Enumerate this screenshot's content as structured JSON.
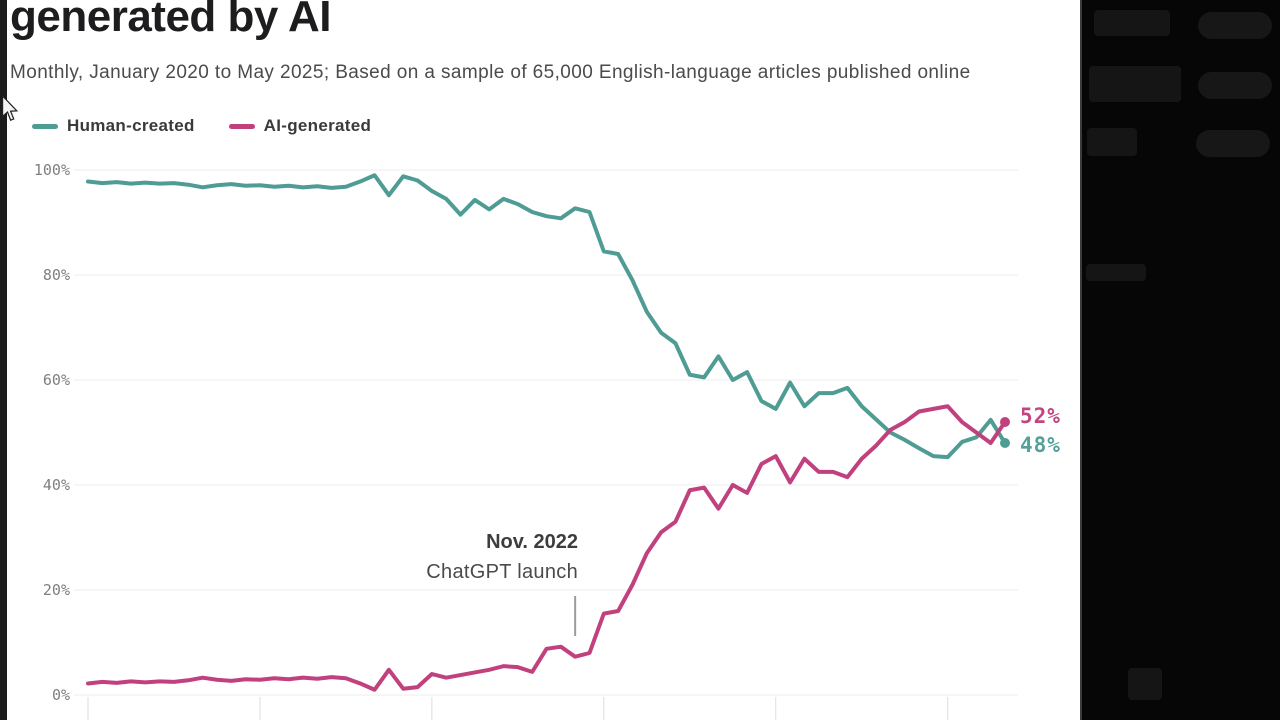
{
  "header": {
    "title": "generated by AI",
    "subtitle": "Monthly, January 2020 to May 2025; Based on a sample of 65,000 English-language articles published online"
  },
  "legend": [
    {
      "label": "Human-created",
      "color": "#4f9c94"
    },
    {
      "label": "AI-generated",
      "color": "#c0417e"
    }
  ],
  "annotation": {
    "line1": "Nov. 2022",
    "line2": "ChatGPT launch"
  },
  "end_labels": {
    "ai": "52%",
    "human": "48%"
  },
  "colors": {
    "human": "#4f9c94",
    "ai": "#c0417e",
    "grid": "#ececec",
    "axis_text": "#7f7f7f",
    "end_label_ai": "#c2457f",
    "end_label_human": "#55a098"
  },
  "chart_data": {
    "type": "line",
    "title": "generated by AI",
    "subtitle": "Monthly, January 2020 to May 2025; Based on a sample of 65,000 English-language articles published online",
    "x_unit": "month",
    "x_range": [
      "Jan 2020",
      "May 2025"
    ],
    "n_points": 65,
    "ylim": [
      0,
      100
    ],
    "grid": "horizontal",
    "legend_position": "top-left",
    "y_ticks": [
      {
        "label": "100%",
        "value": 100
      },
      {
        "label": "80%",
        "value": 80
      },
      {
        "label": "60%",
        "value": 60
      },
      {
        "label": "40%",
        "value": 40
      },
      {
        "label": "20%",
        "value": 20
      },
      {
        "label": "0%",
        "value": 0
      }
    ],
    "year_tick_indices": [
      0,
      12,
      24,
      36,
      48,
      60
    ],
    "annotation": {
      "text": "Nov. 2022 ChatGPT launch",
      "x_month": "Nov 2022",
      "x_index": 34
    },
    "series": [
      {
        "name": "Human-created",
        "color": "#4f9c94",
        "end_label": "48%",
        "values": [
          97.8,
          97.5,
          97.7,
          97.4,
          97.6,
          97.4,
          97.5,
          97.2,
          96.7,
          97.1,
          97.3,
          97.0,
          97.1,
          96.8,
          97.0,
          96.7,
          96.9,
          96.6,
          96.8,
          97.8,
          99.0,
          95.2,
          98.8,
          98.0,
          96.0,
          94.5,
          91.5,
          94.3,
          92.5,
          94.5,
          93.5,
          92.0,
          91.2,
          90.8,
          92.7,
          92.0,
          84.5,
          84.0,
          79.0,
          73.0,
          69.0,
          67.0,
          61.0,
          60.5,
          64.5,
          60.0,
          61.5,
          56.0,
          54.5,
          59.5,
          55.0,
          57.5,
          57.5,
          58.5,
          55.0,
          52.5,
          50.0,
          48.6,
          47.0,
          45.5,
          45.3,
          48.2,
          49.1,
          52.4,
          48.0
        ]
      },
      {
        "name": "AI-generated",
        "color": "#c0417e",
        "end_label": "52%",
        "values": [
          2.2,
          2.5,
          2.3,
          2.6,
          2.4,
          2.6,
          2.5,
          2.8,
          3.3,
          2.9,
          2.7,
          3.0,
          2.9,
          3.2,
          3.0,
          3.3,
          3.1,
          3.4,
          3.2,
          2.2,
          1.0,
          4.8,
          1.2,
          1.5,
          4.0,
          3.3,
          3.8,
          4.3,
          4.8,
          5.5,
          5.3,
          4.4,
          8.8,
          9.2,
          7.3,
          8.0,
          15.5,
          16.0,
          21.0,
          27.0,
          31.0,
          33.0,
          39.0,
          39.5,
          35.5,
          40.0,
          38.5,
          44.0,
          45.5,
          40.5,
          45.0,
          42.5,
          42.5,
          41.5,
          45.0,
          47.5,
          50.5,
          52.0,
          54.0,
          54.5,
          55.0,
          52.0,
          50.0,
          48.0,
          52.0
        ]
      }
    ],
    "end_values": {
      "Human-created": 48,
      "AI-generated": 52
    }
  }
}
